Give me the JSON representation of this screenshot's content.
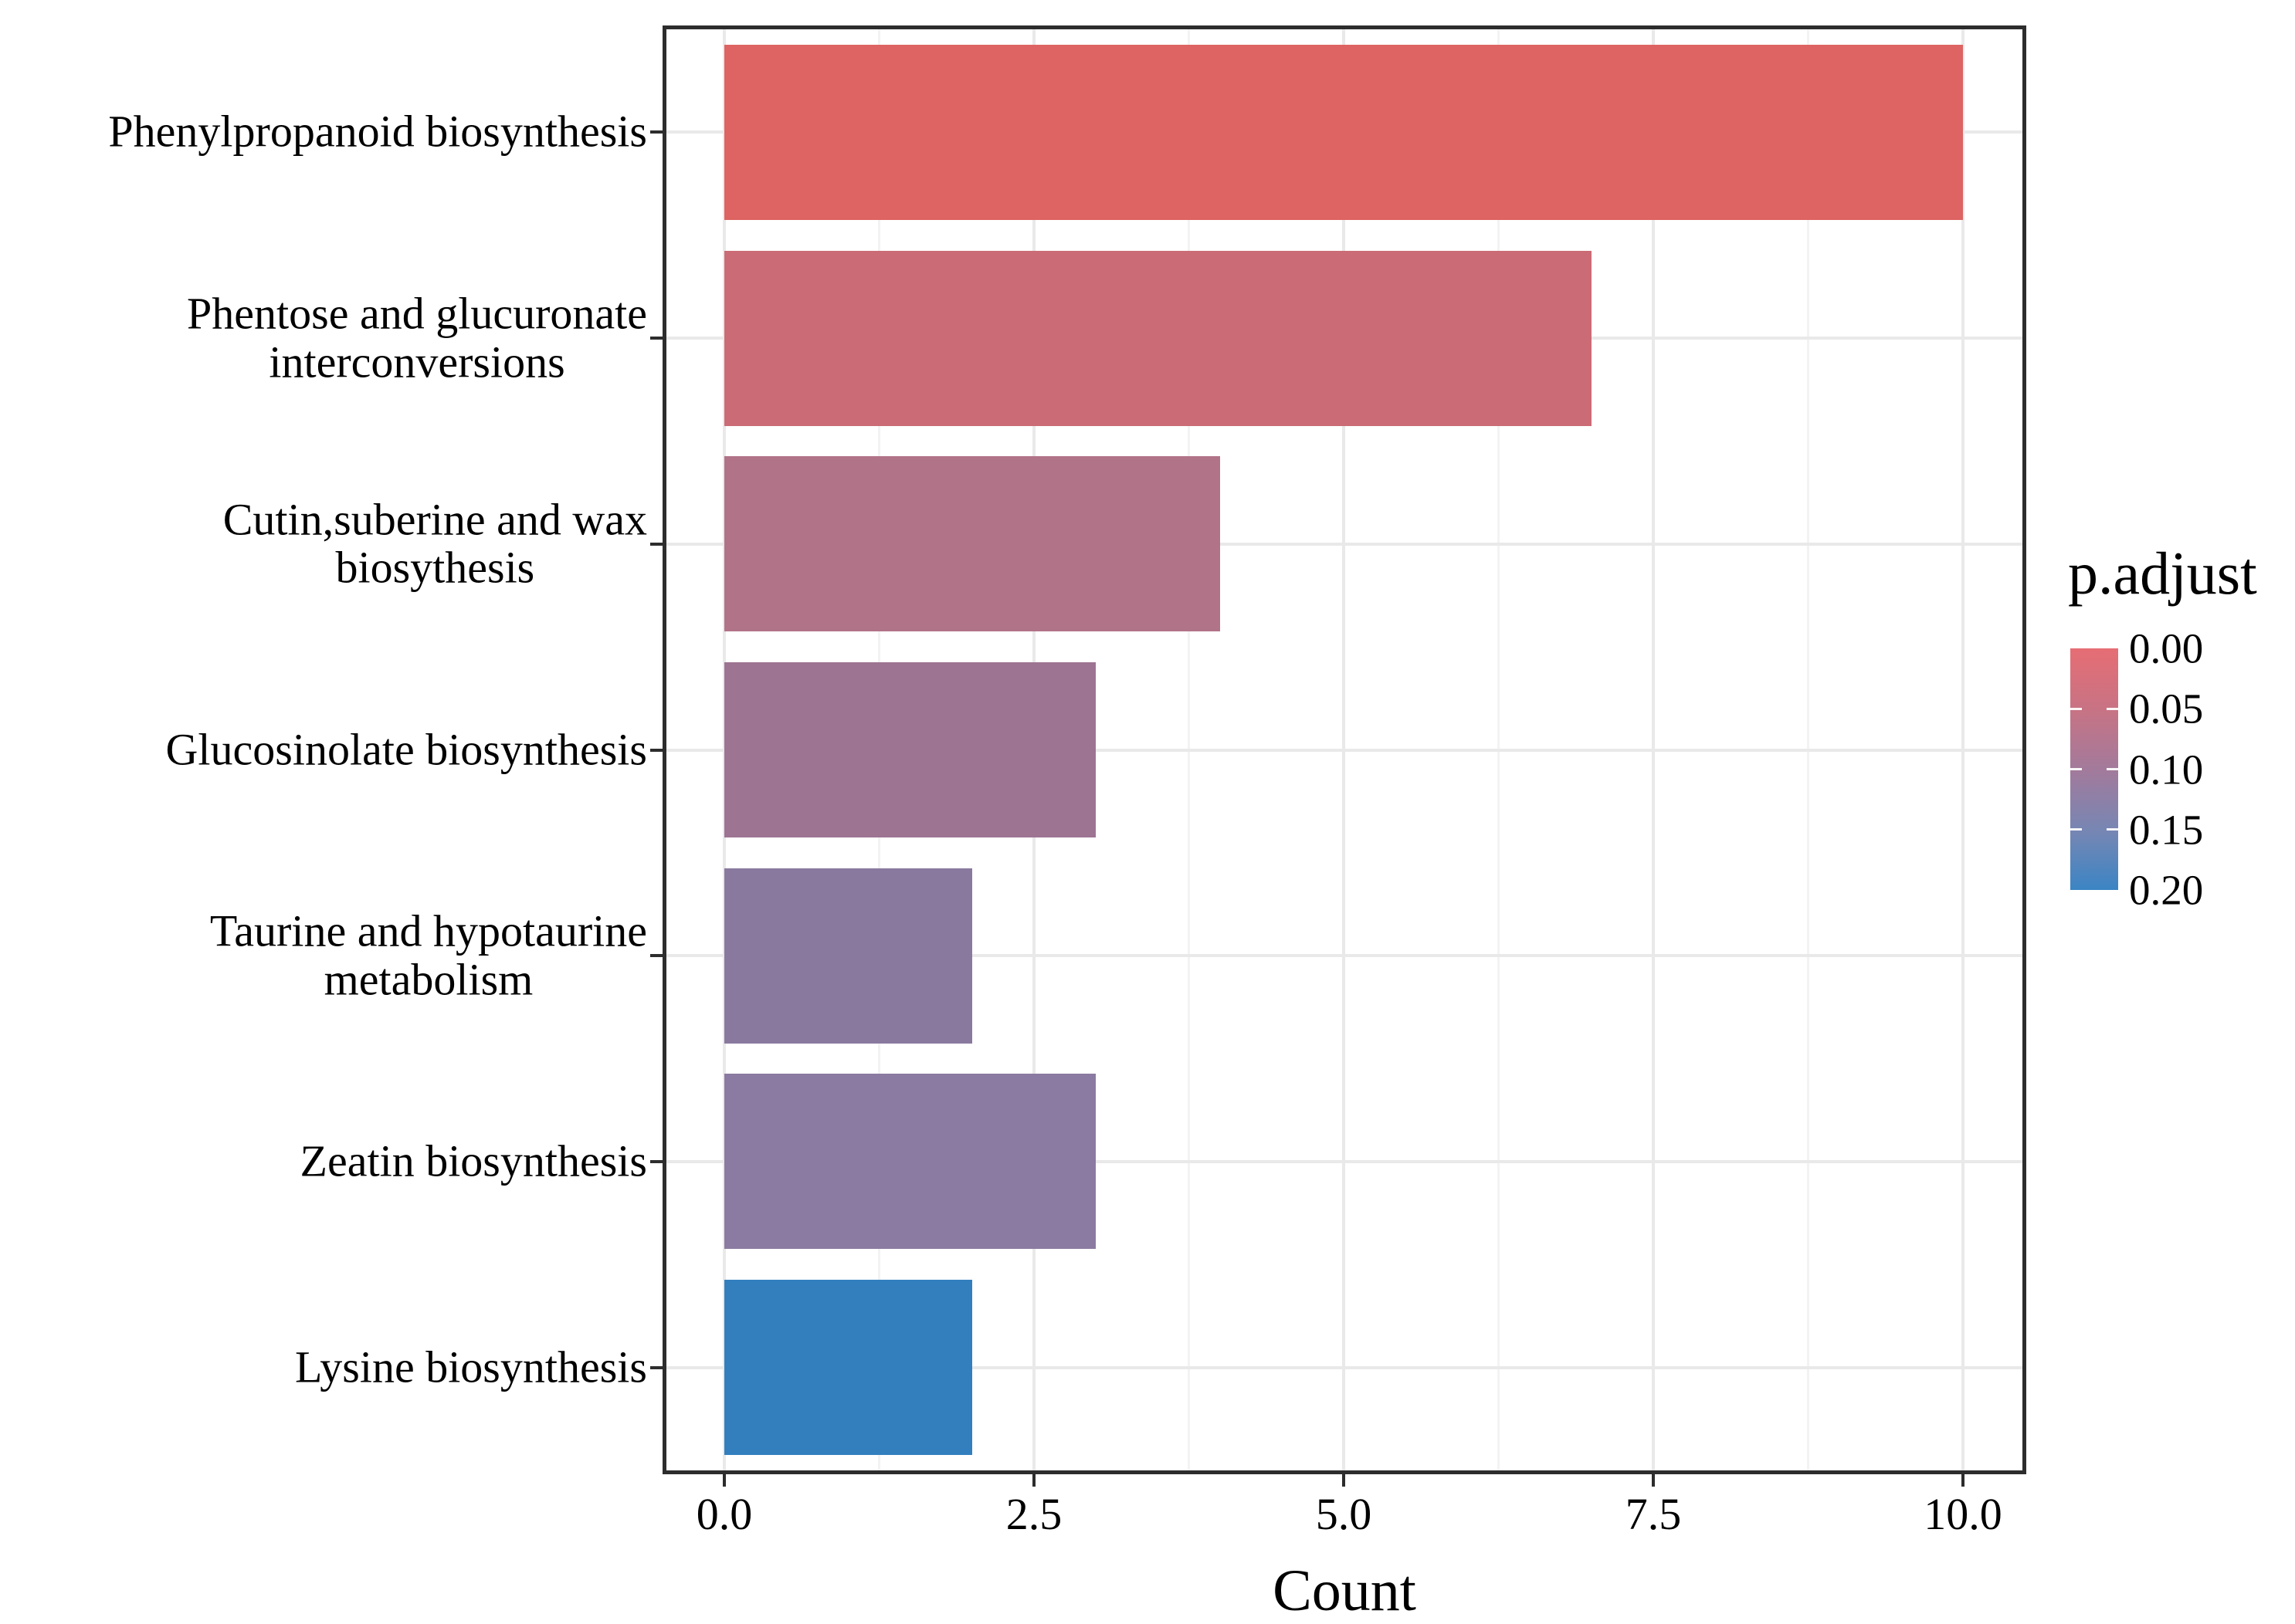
{
  "chart_data": {
    "type": "bar",
    "orientation": "horizontal",
    "title": "",
    "xlabel": "Count",
    "ylabel": "",
    "categories": [
      "Phenylpropanoid biosynthesis",
      "Phentose and glucuronate\ninterconversions",
      "Cutin,suberine and wax\nbiosythesis",
      "Glucosinolate biosynthesis",
      "Taurine and hypotaurine\nmetabolism",
      "Zeatin biosynthesis",
      "Lysine biosynthesis"
    ],
    "values": [
      10,
      7,
      4,
      3,
      2,
      3,
      2
    ],
    "bar_colors": [
      "#dd6462",
      "#cb6b75",
      "#b17387",
      "#9d7492",
      "#89799e",
      "#8b7aa1",
      "#337fbe"
    ],
    "xlim": [
      -0.5,
      10.5
    ],
    "x_ticks": [
      {
        "value": 0,
        "label": "0.0"
      },
      {
        "value": 2.5,
        "label": "2.5"
      },
      {
        "value": 5,
        "label": "5.0"
      },
      {
        "value": 7.5,
        "label": "7.5"
      },
      {
        "value": 10,
        "label": "10.0"
      }
    ],
    "x_minor_ticks": [
      1.25,
      3.75,
      6.25,
      8.75
    ],
    "grid": true,
    "legend": {
      "title": "p.adjust",
      "position": "right",
      "labels": [
        "0.00",
        "0.05",
        "0.10",
        "0.15",
        "0.20"
      ],
      "gradient_stops": [
        "#e66d74",
        "#c87384",
        "#a37a9b",
        "#7886b3",
        "#3b85c4"
      ]
    }
  },
  "colors": {
    "background": "#ffffff",
    "panel_border": "#2d2d2d",
    "grid_major": "#e9e9e9",
    "grid_minor": "#f3f3f3",
    "tick": "#2d2d2d",
    "text": "#000000"
  }
}
